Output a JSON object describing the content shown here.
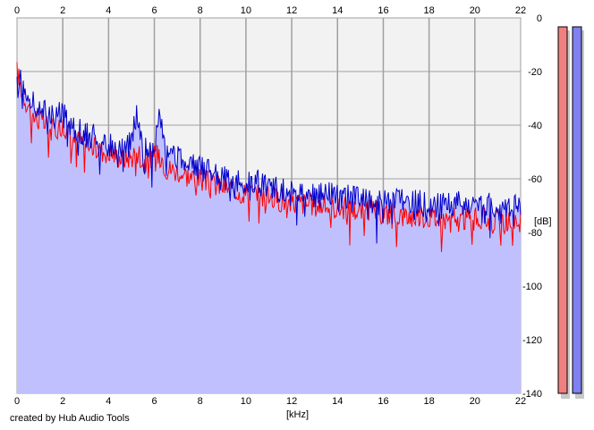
{
  "footer_text": "created by Hub Audio Tools",
  "colors": {
    "background": "#ffffff",
    "plot_background": "#f2f2f2",
    "grid": "#a0a0a0",
    "fill": "#c0c0ff",
    "left_channel": "#ff0000",
    "right_channel": "#0000cc",
    "meter_left": "#f08080",
    "meter_right": "#8080f0"
  },
  "chart_data": {
    "type": "line",
    "title": "",
    "xlabel": "[kHz]",
    "ylabel": "[dB]",
    "xlim": [
      0,
      22
    ],
    "ylim": [
      -140,
      0
    ],
    "x_ticks": [
      "0",
      "2",
      "4",
      "6",
      "8",
      "10",
      "12",
      "14",
      "16",
      "18",
      "20",
      "22"
    ],
    "y_ticks": [
      "0",
      "-20",
      "-40",
      "-60",
      "-80",
      "-100",
      "-120",
      "-140"
    ],
    "x_tick_values": [
      0,
      2,
      4,
      6,
      8,
      10,
      12,
      14,
      16,
      18,
      20,
      22
    ],
    "y_tick_values": [
      0,
      -20,
      -40,
      -60,
      -80,
      -100,
      -120,
      -140
    ],
    "grid": true,
    "x": [
      0,
      0.25,
      0.5,
      0.75,
      1,
      1.5,
      2,
      2.5,
      3,
      3.5,
      4,
      4.5,
      5,
      5.25,
      5.5,
      6,
      6.25,
      6.5,
      7,
      7.5,
      8,
      8.5,
      9,
      9.5,
      10,
      10.5,
      11,
      11.5,
      12,
      12.5,
      13,
      13.5,
      14,
      14.5,
      15,
      15.5,
      16,
      16.5,
      17,
      17.5,
      18,
      18.5,
      19,
      19.5,
      20,
      20.5,
      21,
      21.5,
      22
    ],
    "series": [
      {
        "color": "#ff0000",
        "values": [
          -20,
          -28,
          -33,
          -37,
          -38,
          -42,
          -40,
          -45,
          -47,
          -49,
          -50,
          -52,
          -52,
          -48,
          -54,
          -52,
          -50,
          -56,
          -57,
          -59,
          -60,
          -62,
          -63,
          -64,
          -65,
          -66,
          -67,
          -68,
          -69,
          -69,
          -70,
          -70,
          -71,
          -71,
          -72,
          -72,
          -73,
          -73,
          -74,
          -74,
          -74,
          -75,
          -75,
          -75,
          -75,
          -75,
          -76,
          -76,
          -76
        ]
      },
      {
        "color": "#0000cc",
        "values": [
          -17,
          -25,
          -29,
          -33,
          -34,
          -37,
          -36,
          -41,
          -43,
          -45,
          -47,
          -48,
          -47,
          -34,
          -49,
          -47,
          -37,
          -52,
          -52,
          -55,
          -56,
          -58,
          -59,
          -61,
          -62,
          -61,
          -63,
          -64,
          -65,
          -64,
          -66,
          -66,
          -67,
          -67,
          -68,
          -68,
          -69,
          -68,
          -69,
          -69,
          -70,
          -70,
          -70,
          -69,
          -70,
          -70,
          -71,
          -71,
          -71
        ]
      }
    ]
  }
}
